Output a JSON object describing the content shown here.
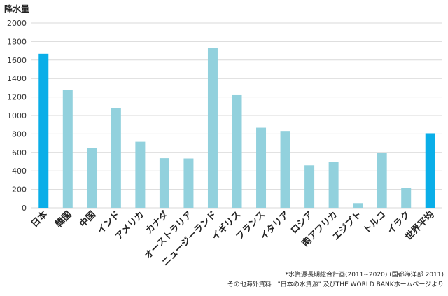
{
  "chart_data": {
    "type": "bar",
    "ylabel": "降水量",
    "ylim": [
      0,
      2000
    ],
    "yticks": [
      0,
      200,
      400,
      600,
      800,
      1000,
      1200,
      1400,
      1600,
      1800,
      2000
    ],
    "grid": true,
    "categories": [
      "日本",
      "韓国",
      "中国",
      "インド",
      "アメリカ",
      "カナダ",
      "オーストラリア",
      "ニュージーランド",
      "イギリス",
      "フランス",
      "イタリア",
      "ロシア",
      "南アフリカ",
      "エジプト",
      "トルコ",
      "イラク",
      "世界平均"
    ],
    "values": [
      1668,
      1274,
      645,
      1083,
      715,
      537,
      534,
      1732,
      1220,
      867,
      832,
      460,
      495,
      51,
      593,
      216,
      807
    ],
    "highlight": [
      "日本",
      "世界平均"
    ],
    "colors": {
      "normal": "#92d1dd",
      "highlight": "#0aaee8",
      "grid": "#d9d9d9"
    }
  },
  "source": {
    "line1": "*水資源長期総合計画(2011~2020) (国都海洋部 2011)",
    "line2": "その他海外資料　\"日本の水資源\" 及びTHE WORLD BANKホームページより"
  }
}
